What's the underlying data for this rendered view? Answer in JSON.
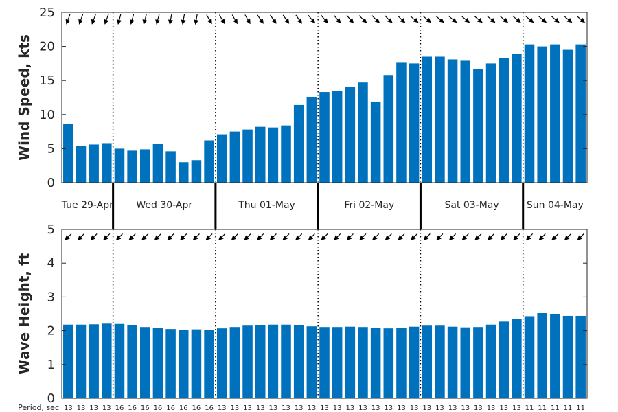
{
  "chart_data": [
    {
      "type": "bar",
      "ylabel": "Wind Speed, kts",
      "ylim": [
        0,
        25
      ],
      "yticks": [
        0,
        5,
        10,
        15,
        20,
        25
      ],
      "grid": false,
      "bar_color": "#0072BD",
      "values": [
        8.6,
        5.4,
        5.6,
        5.8,
        5.0,
        4.7,
        4.9,
        5.7,
        4.6,
        3.0,
        3.3,
        6.2,
        7.1,
        7.5,
        7.8,
        8.2,
        8.1,
        8.4,
        11.4,
        12.6,
        13.3,
        13.5,
        14.1,
        14.7,
        11.9,
        15.8,
        17.6,
        17.5,
        18.5,
        18.5,
        18.1,
        17.9,
        16.7,
        17.5,
        18.3,
        18.9,
        20.3,
        20.0,
        20.3,
        19.5,
        20.3
      ],
      "direction_arrows_deg": [
        250,
        250,
        250,
        250,
        255,
        255,
        255,
        255,
        260,
        260,
        260,
        300,
        300,
        300,
        300,
        305,
        305,
        305,
        305,
        310,
        310,
        310,
        310,
        315,
        315,
        315,
        315,
        320,
        320,
        320,
        320,
        320,
        320,
        320,
        320,
        320,
        320,
        320,
        320,
        320,
        320
      ]
    },
    {
      "type": "bar",
      "ylabel": "Wave Height, ft",
      "ylim": [
        0,
        5
      ],
      "yticks": [
        0,
        1,
        2,
        3,
        4,
        5
      ],
      "grid": false,
      "bar_color": "#0072BD",
      "values": [
        2.18,
        2.18,
        2.19,
        2.21,
        2.2,
        2.16,
        2.11,
        2.08,
        2.05,
        2.03,
        2.04,
        2.03,
        2.07,
        2.11,
        2.15,
        2.17,
        2.18,
        2.18,
        2.16,
        2.13,
        2.11,
        2.11,
        2.12,
        2.11,
        2.09,
        2.07,
        2.09,
        2.12,
        2.15,
        2.15,
        2.12,
        2.1,
        2.11,
        2.18,
        2.27,
        2.35,
        2.43,
        2.52,
        2.5,
        2.44,
        2.44
      ],
      "direction_arrows_deg": [
        225,
        225,
        225,
        225,
        225,
        225,
        225,
        225,
        225,
        225,
        225,
        225,
        225,
        225,
        225,
        225,
        225,
        225,
        225,
        225,
        225,
        225,
        225,
        225,
        225,
        225,
        225,
        225,
        225,
        225,
        225,
        225,
        225,
        225,
        225,
        225,
        225,
        225,
        225,
        225,
        225
      ]
    }
  ],
  "days": [
    {
      "label": "Tue 29-Apr",
      "start": 0,
      "end": 4
    },
    {
      "label": "Wed 30-Apr",
      "start": 4,
      "end": 12
    },
    {
      "label": "Thu 01-May",
      "start": 12,
      "end": 20
    },
    {
      "label": "Fri 02-May",
      "start": 20,
      "end": 28
    },
    {
      "label": "Sat 03-May",
      "start": 28,
      "end": 36
    },
    {
      "label": "Sun 04-May",
      "start": 36,
      "end": 41
    }
  ],
  "period": {
    "title": "Period, sec",
    "values": [
      "13",
      "13",
      "13",
      "13",
      "16",
      "16",
      "16",
      "16",
      "16",
      "16",
      "16",
      "16",
      "13",
      "13",
      "13",
      "13",
      "13",
      "13",
      "13",
      "13",
      "13",
      "13",
      "13",
      "13",
      "13",
      "13",
      "13",
      "13",
      "13",
      "13",
      "13",
      "13",
      "13",
      "13",
      "13",
      "13",
      "11",
      "11",
      "11",
      "11",
      "11"
    ]
  }
}
